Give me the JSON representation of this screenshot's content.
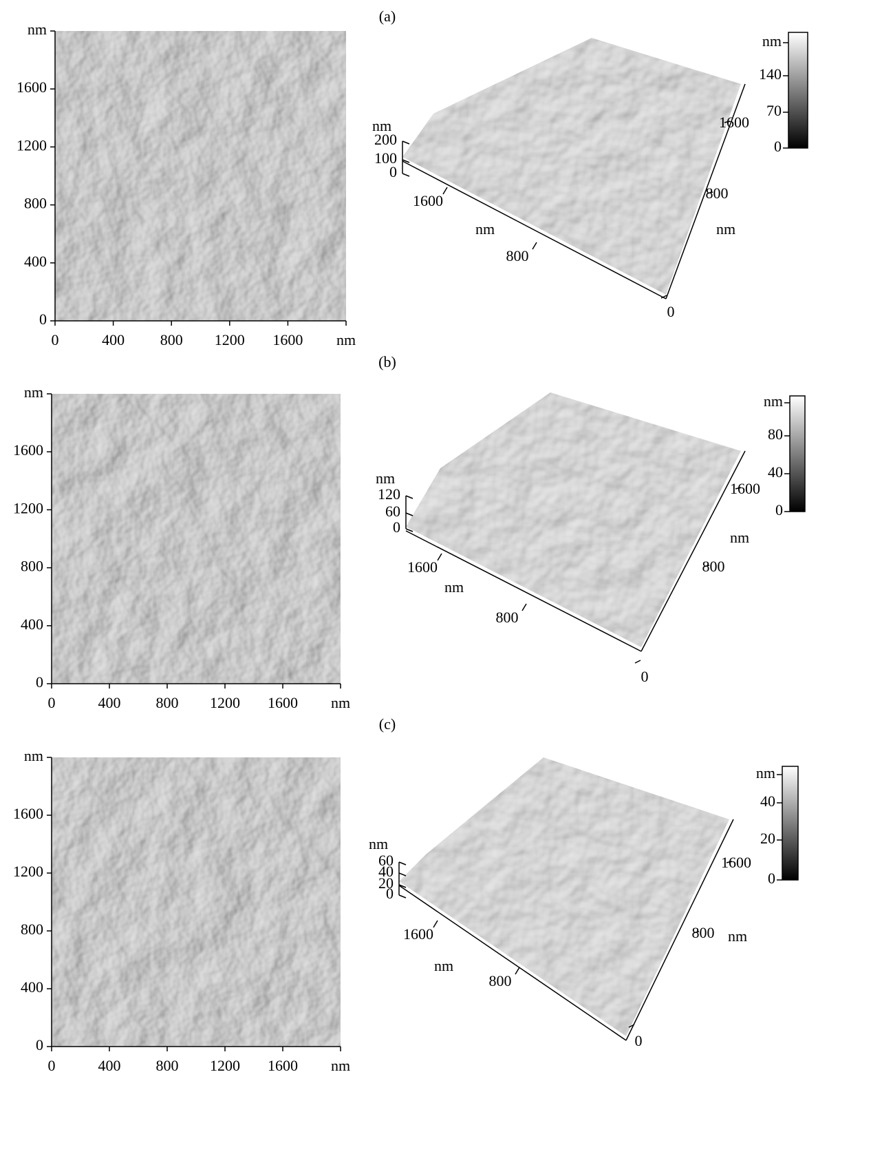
{
  "panels": [
    {
      "label": "(a)",
      "image_2d": {
        "y_unit": "nm",
        "y_ticks": [
          0,
          400,
          800,
          1200,
          1600
        ],
        "x_ticks": [
          0,
          400,
          800,
          1200,
          1600
        ],
        "x_unit": "nm"
      },
      "surface_3d": {
        "z_unit": "nm",
        "z_ticks": [
          0,
          100,
          200
        ],
        "y_ticks": [
          1600,
          800
        ],
        "y_unit": "nm",
        "x_ticks": [
          0,
          800,
          1600
        ],
        "x_unit": "nm"
      },
      "color_bar": {
        "unit": "nm",
        "ticks": [
          0,
          70,
          140
        ]
      }
    },
    {
      "label": "(b)",
      "image_2d": {
        "y_unit": "nm",
        "y_ticks": [
          0,
          400,
          800,
          1200,
          1600
        ],
        "x_ticks": [
          0,
          400,
          800,
          1200,
          1600
        ],
        "x_unit": "nm"
      },
      "surface_3d": {
        "z_unit": "nm",
        "z_ticks": [
          0,
          60,
          120
        ],
        "y_ticks": [
          1600,
          800
        ],
        "y_unit": "nm",
        "x_ticks": [
          0,
          800,
          1600
        ],
        "x_unit": "nm"
      },
      "color_bar": {
        "unit": "nm",
        "ticks": [
          0,
          40,
          80
        ]
      }
    },
    {
      "label": "(c)",
      "image_2d": {
        "y_unit": "nm",
        "y_ticks": [
          0,
          400,
          800,
          1200,
          1600
        ],
        "x_ticks": [
          0,
          400,
          800,
          1200,
          1600
        ],
        "x_unit": "nm"
      },
      "surface_3d": {
        "z_unit": "nm",
        "z_ticks": [
          0,
          20,
          40,
          60
        ],
        "y_ticks": [
          1600,
          800
        ],
        "y_unit": "nm",
        "x_ticks": [
          0,
          800,
          1600
        ],
        "x_unit": "nm"
      },
      "color_bar": {
        "unit": "nm",
        "ticks": [
          0,
          20,
          40
        ]
      }
    }
  ]
}
